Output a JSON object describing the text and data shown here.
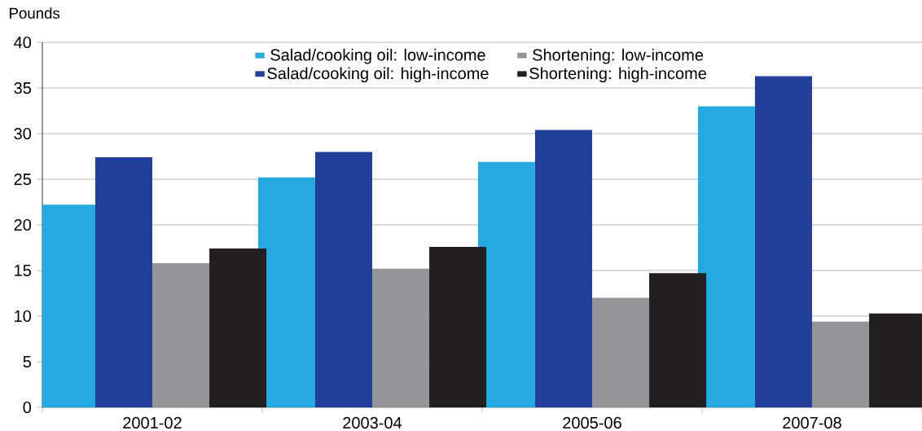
{
  "chart_data": {
    "type": "bar",
    "ylabel": "Pounds",
    "categories": [
      "2001-02",
      "2003-04",
      "2005-06",
      "2007-08"
    ],
    "series": [
      {
        "name": "Salad/cooking oil: low-income",
        "color": "#25a9e0",
        "values": [
          22.2,
          25.2,
          26.9,
          33.0
        ]
      },
      {
        "name": "Salad/cooking oil: high-income",
        "color": "#223f99",
        "values": [
          27.4,
          28.0,
          30.4,
          36.3
        ]
      },
      {
        "name": "Shortening: low-income",
        "color": "#939598",
        "values": [
          15.8,
          15.2,
          12.0,
          9.4
        ]
      },
      {
        "name": "Shortening: high-income",
        "color": "#231f20",
        "values": [
          17.4,
          17.6,
          14.7,
          10.3
        ]
      }
    ],
    "ylim": [
      0,
      40
    ],
    "yticks": [
      0,
      5,
      10,
      15,
      20,
      25,
      30,
      35,
      40
    ],
    "grid": "y",
    "legend": "top"
  }
}
